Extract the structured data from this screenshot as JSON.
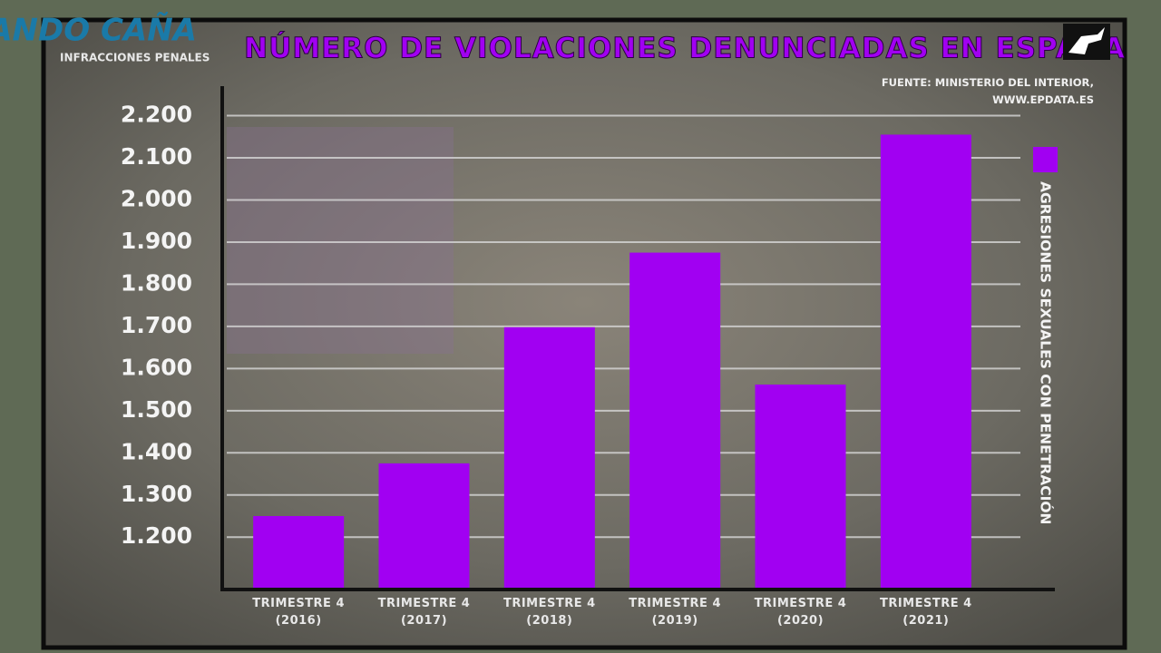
{
  "logo": "DANDO CAÑA",
  "chart_data": {
    "type": "bar",
    "title": "NÚMERO DE VIOLACIONES DENUNCIADAS EN ESPAÑA",
    "subtitle": "INFRACCIONES PENALES",
    "source": "FUENTE: MINISTERIO DEL INTERIOR,\nWWW.EPDATA.ES",
    "categories": [
      "TRIMESTRE 4\n(2016)",
      "TRIMESTRE 4\n(2017)",
      "TRIMESTRE 4\n(2018)",
      "TRIMESTRE 4\n(2019)",
      "TRIMESTRE 4\n(2020)",
      "TRIMESTRE 4\n(2021)"
    ],
    "series": [
      {
        "name": "AGRESIONES SEXUALES CON PENETRACIÓN",
        "color": "#a100f2",
        "values": [
          1250,
          1375,
          1698,
          1875,
          1562,
          2155
        ]
      }
    ],
    "ylim": [
      1080,
      2270
    ],
    "yticks": [
      {
        "value": 1200,
        "label": "1.200"
      },
      {
        "value": 1300,
        "label": "1.300"
      },
      {
        "value": 1400,
        "label": "1.400"
      },
      {
        "value": 1500,
        "label": "1.500"
      },
      {
        "value": 1600,
        "label": "1.600"
      },
      {
        "value": 1700,
        "label": "1.700"
      },
      {
        "value": 1800,
        "label": "1.800"
      },
      {
        "value": 1900,
        "label": "1.900"
      },
      {
        "value": 2000,
        "label": "2.000"
      },
      {
        "value": 2100,
        "label": "2.100"
      },
      {
        "value": 2200,
        "label": "2.200"
      }
    ],
    "grid": true
  }
}
